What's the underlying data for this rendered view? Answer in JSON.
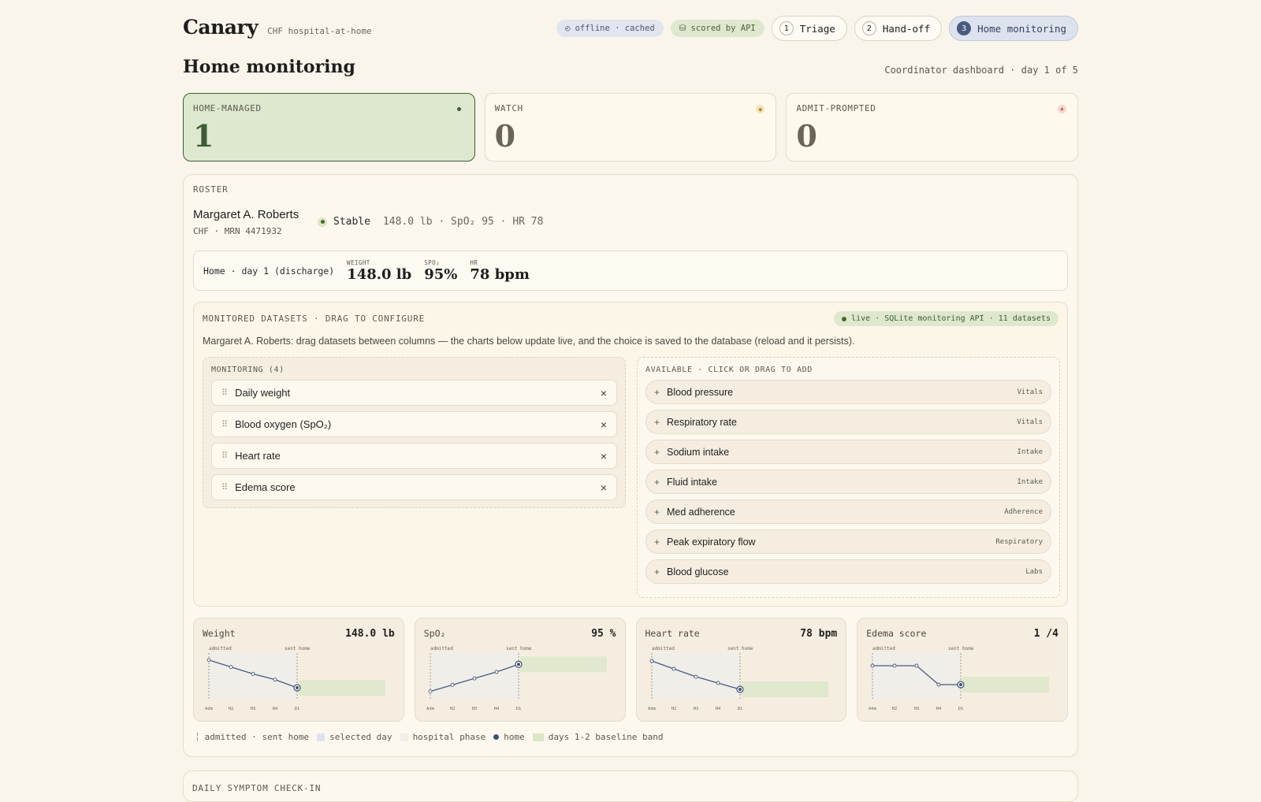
{
  "app": {
    "name": "Canary",
    "subtitle": "CHF hospital-at-home"
  },
  "status": {
    "offline": "offline · cached",
    "api": "scored by API"
  },
  "steps": [
    {
      "num": "1",
      "label": "Triage"
    },
    {
      "num": "2",
      "label": "Hand-off"
    },
    {
      "num": "3",
      "label": "Home monitoring"
    }
  ],
  "page": {
    "title": "Home monitoring",
    "meta": "Coordinator dashboard · day 1 of 5"
  },
  "stats": [
    {
      "label": "HOME-MANAGED",
      "value": "1",
      "dot_color": "#3f5b33"
    },
    {
      "label": "WATCH",
      "value": "0",
      "dot_color": "#d8b64a"
    },
    {
      "label": "ADMIT-PROMPTED",
      "value": "0",
      "dot_color": "#c9523f"
    }
  ],
  "roster": {
    "label": "ROSTER",
    "patient": {
      "name": "Margaret A. Roberts",
      "sub": "CHF · MRN 4471932",
      "status": "Stable",
      "vitals": "148.0 lb · SpO₂ 95 · HR 78"
    },
    "day": {
      "label": "Home · day 1 (discharge)",
      "weight_k": "WEIGHT",
      "weight_v": "148.0 lb",
      "spo2_k": "SPO₂",
      "spo2_v": "95%",
      "hr_k": "HR",
      "hr_v": "78 bpm"
    }
  },
  "datasets": {
    "header": "MONITORED DATASETS · DRAG TO CONFIGURE",
    "live": "live · SQLite monitoring API · 11 datasets",
    "description": "Margaret A. Roberts: drag datasets between columns — the charts below update live, and the choice is saved to the database (reload and it persists).",
    "monitoring_title": "MONITORING (4)",
    "monitoring": [
      "Daily weight",
      "Blood oxygen (SpO₂)",
      "Heart rate",
      "Edema score"
    ],
    "available_title": "AVAILABLE · CLICK OR DRAG TO ADD",
    "available": [
      {
        "label": "Blood pressure",
        "cat": "Vitals"
      },
      {
        "label": "Respiratory rate",
        "cat": "Vitals"
      },
      {
        "label": "Sodium intake",
        "cat": "Intake"
      },
      {
        "label": "Fluid intake",
        "cat": "Intake"
      },
      {
        "label": "Med adherence",
        "cat": "Adherence"
      },
      {
        "label": "Peak expiratory flow",
        "cat": "Respiratory"
      },
      {
        "label": "Blood glucose",
        "cat": "Labs"
      }
    ]
  },
  "charts": [
    {
      "title": "Weight",
      "value": "148.0 lb"
    },
    {
      "title": "SpO₂",
      "value": "95 %"
    },
    {
      "title": "Heart rate",
      "value": "78 bpm"
    },
    {
      "title": "Edema score",
      "value": "1 /4"
    }
  ],
  "chart_data": [
    {
      "type": "line",
      "title": "Weight",
      "categories": [
        "Adm",
        "H2",
        "H3",
        "H4",
        "D1"
      ],
      "series": [
        {
          "values": [
            152.4,
            151.3,
            150.2,
            149.3,
            148.0
          ]
        }
      ],
      "annotations": [
        "admitted",
        "sent home"
      ],
      "ylim": [
        147,
        153
      ]
    },
    {
      "type": "line",
      "title": "SpO₂",
      "categories": [
        "Adm",
        "H2",
        "H3",
        "H4",
        "D1"
      ],
      "series": [
        {
          "values": [
            90,
            91.2,
            92.4,
            93.6,
            95
          ]
        }
      ],
      "annotations": [
        "admitted",
        "sent home"
      ],
      "ylim": [
        89.5,
        96.5
      ]
    },
    {
      "type": "line",
      "title": "Heart rate",
      "categories": [
        "Adm",
        "H2",
        "H3",
        "H4",
        "D1"
      ],
      "series": [
        {
          "values": [
            96,
            91,
            86,
            82,
            78
          ]
        }
      ],
      "annotations": [
        "admitted",
        "sent home"
      ],
      "ylim": [
        75,
        99
      ]
    },
    {
      "type": "line",
      "title": "Edema score",
      "categories": [
        "Adm",
        "H2",
        "H3",
        "H4",
        "D1"
      ],
      "series": [
        {
          "values": [
            3,
            3,
            3,
            1,
            1
          ]
        }
      ],
      "annotations": [
        "admitted",
        "sent home"
      ],
      "ylim": [
        0,
        4
      ]
    }
  ],
  "legend": [
    "admitted · sent home",
    "selected day",
    "hospital phase",
    "home",
    "days 1-2 baseline band"
  ],
  "symptom": {
    "label": "DAILY SYMPTOM CHECK-IN"
  }
}
